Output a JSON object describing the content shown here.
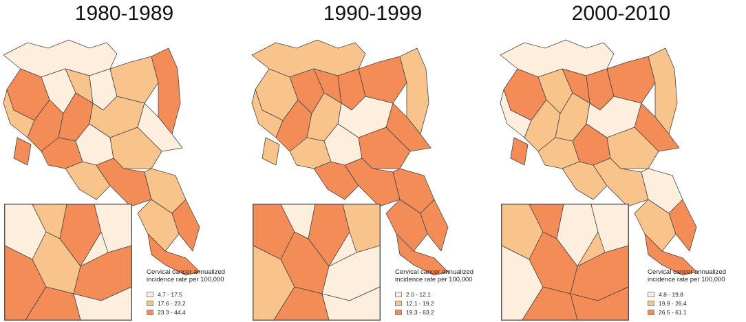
{
  "panels": [
    {
      "title": "1980-1989",
      "legend_title_line1": "Cervical cancer annualized",
      "legend_title_line2": "incidence rate per 100,000",
      "classes": [
        {
          "label": "4.7 - 17.5",
          "color": "#fdeedd"
        },
        {
          "label": "17.6 - 23.2",
          "color": "#f8c48c"
        },
        {
          "label": "23.3 - 44.4",
          "color": "#f48c58"
        }
      ]
    },
    {
      "title": "1990-1999",
      "legend_title_line1": "Cervical cancer annualized",
      "legend_title_line2": "incidence rate per 100,000",
      "classes": [
        {
          "label": "2.0 - 12.1",
          "color": "#fdeedd"
        },
        {
          "label": "12.1 - 19.2",
          "color": "#f8c48c"
        },
        {
          "label": "19.3 - 63.2",
          "color": "#f48c58"
        }
      ]
    },
    {
      "title": "2000-2010",
      "legend_title_line1": "Cervical cancer annualized",
      "legend_title_line2": "incidence rate per 100,000",
      "classes": [
        {
          "label": "4.8 - 19.8",
          "color": "#fdeedd"
        },
        {
          "label": "19.9 - 26.4",
          "color": "#f8c48c"
        },
        {
          "label": "26.5 - 61.1",
          "color": "#f48c58"
        }
      ]
    }
  ],
  "colors": {
    "low": "#fdeedd",
    "mid": "#f8c48c",
    "high": "#f48c58",
    "border": "#444444"
  }
}
